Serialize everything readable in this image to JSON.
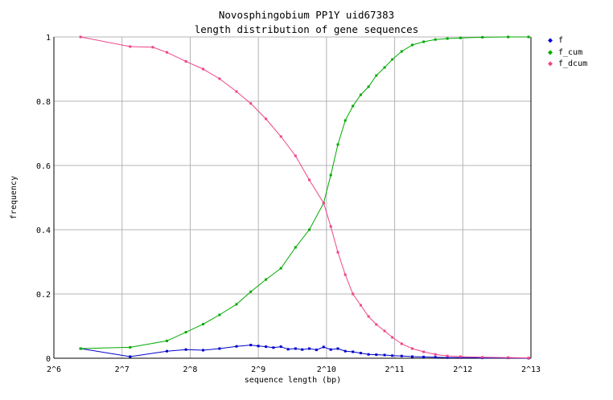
{
  "chart_data": {
    "type": "line",
    "title": "Novosphingobium PP1Y uid67383",
    "subtitle": "length distribution of gene sequences",
    "xlabel": "sequence length (bp)",
    "ylabel": "frequency",
    "x_scale": "log2",
    "xlim": [
      64,
      8192
    ],
    "ylim": [
      0,
      1
    ],
    "x_ticks": [
      "2^6",
      "2^7",
      "2^8",
      "2^9",
      "2^10",
      "2^11",
      "2^12",
      "2^13"
    ],
    "y_ticks": [
      "0",
      "0.2",
      "0.4",
      "0.6",
      "0.8",
      "1"
    ],
    "grid": true,
    "legend_position": "top-right",
    "series": [
      {
        "name": "f",
        "color": "#0000cc",
        "x": [
          84,
          139,
          202,
          245,
          292,
          345,
          410,
          474,
          512,
          553,
          597,
          644,
          693,
          747,
          800,
          860,
          925,
          995,
          1070,
          1150,
          1240,
          1340,
          1450,
          1570,
          1700,
          1850,
          2000,
          2200,
          2450,
          2750,
          3100,
          3500,
          4000,
          5000,
          6500,
          8000
        ],
        "values": [
          0.03,
          0.005,
          0.022,
          0.027,
          0.025,
          0.03,
          0.037,
          0.041,
          0.038,
          0.036,
          0.033,
          0.036,
          0.028,
          0.03,
          0.027,
          0.03,
          0.026,
          0.035,
          0.027,
          0.03,
          0.022,
          0.02,
          0.016,
          0.012,
          0.011,
          0.01,
          0.008,
          0.007,
          0.005,
          0.004,
          0.003,
          0.002,
          0.002,
          0.001,
          0.001,
          0.0
        ]
      },
      {
        "name": "f_cum",
        "color": "#00aa00",
        "x": [
          84,
          139,
          202,
          245,
          292,
          345,
          410,
          474,
          553,
          644,
          747,
          860,
          995,
          1070,
          1150,
          1240,
          1340,
          1450,
          1570,
          1700,
          1850,
          2000,
          2200,
          2450,
          2750,
          3100,
          3500,
          4000,
          5000,
          6500,
          8000
        ],
        "values": [
          0.03,
          0.034,
          0.054,
          0.081,
          0.106,
          0.135,
          0.168,
          0.207,
          0.245,
          0.28,
          0.345,
          0.4,
          0.483,
          0.57,
          0.665,
          0.74,
          0.785,
          0.82,
          0.845,
          0.88,
          0.905,
          0.93,
          0.955,
          0.975,
          0.985,
          0.992,
          0.995,
          0.997,
          0.999,
          1.0,
          1.0
        ]
      },
      {
        "name": "f_dcum",
        "color": "#ee4488",
        "x": [
          84,
          139,
          175,
          202,
          245,
          292,
          345,
          410,
          474,
          553,
          644,
          747,
          860,
          995,
          1070,
          1150,
          1240,
          1340,
          1450,
          1570,
          1700,
          1850,
          2000,
          2200,
          2450,
          2750,
          3100,
          3500,
          4000,
          5000,
          6500,
          8000
        ],
        "values": [
          1.0,
          0.97,
          0.968,
          0.952,
          0.924,
          0.9,
          0.87,
          0.83,
          0.793,
          0.745,
          0.69,
          0.63,
          0.555,
          0.483,
          0.41,
          0.33,
          0.26,
          0.2,
          0.165,
          0.13,
          0.105,
          0.085,
          0.065,
          0.045,
          0.03,
          0.02,
          0.012,
          0.007,
          0.005,
          0.003,
          0.002,
          0.001
        ]
      }
    ]
  }
}
